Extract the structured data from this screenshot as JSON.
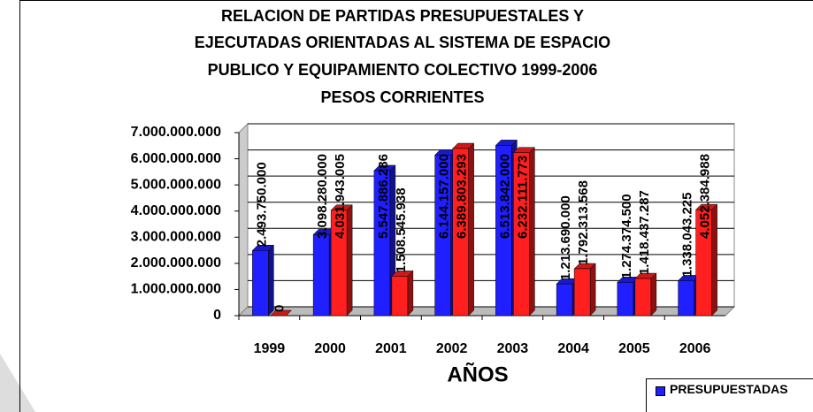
{
  "chart_data": {
    "type": "bar",
    "title": [
      "RELACION DE PARTIDAS PRESUPUESTALES Y",
      "EJECUTADAS ORIENTADAS AL SISTEMA DE ESPACIO",
      "PUBLICO Y EQUIPAMIENTO COLECTIVO 1999-2006",
      "PESOS CORRIENTES"
    ],
    "x_label": "AÑOS",
    "categories": [
      "1999",
      "2000",
      "2001",
      "2002",
      "2003",
      "2004",
      "2005",
      "2006"
    ],
    "series": [
      {
        "name": "PRESUPUESTADAS",
        "color": "#1f1fff",
        "values": [
          2493750000,
          3098280000,
          5547886286,
          6144157000,
          6513842000,
          1213690000,
          1274374500,
          1338043225
        ],
        "value_labels": [
          "2.493.750.000",
          "3.098.280.000",
          "5.547.886.286",
          "6.144.157.000",
          "6.513.842.000",
          "1.213.690.000",
          "1.274.374.500",
          "1.338.043.225"
        ]
      },
      {
        "color": "#ff1f1f",
        "values": [
          0,
          4031943005,
          1508545938,
          6389803293,
          6232111773,
          1792313568,
          1418437287,
          4052384988
        ],
        "value_labels": [
          "0",
          "4.031.943.005",
          "1.508.545.938",
          "6.389.803.293",
          "6.232.111.773",
          "1.792.313.568",
          "1.418.437.287",
          "4.052.384.988"
        ]
      }
    ],
    "ylim": [
      0,
      7000000000
    ],
    "yticks": [
      0,
      {
        "value": 1000000000,
        "label": "1.000.000.000"
      },
      {
        "value": 2000000000,
        "label": "2.000.000.000"
      },
      {
        "value": 3000000000,
        "label": "3.000.000.000"
      },
      {
        "value": 4000000000,
        "label": "4.000.000.000"
      },
      {
        "value": 5000000000,
        "label": "5.000.000.000"
      },
      {
        "value": 6000000000,
        "label": "6.000.000.000"
      },
      {
        "value": 7000000000,
        "label": "7.000.000.000"
      }
    ],
    "grid": true,
    "legend": "bottom-right"
  }
}
